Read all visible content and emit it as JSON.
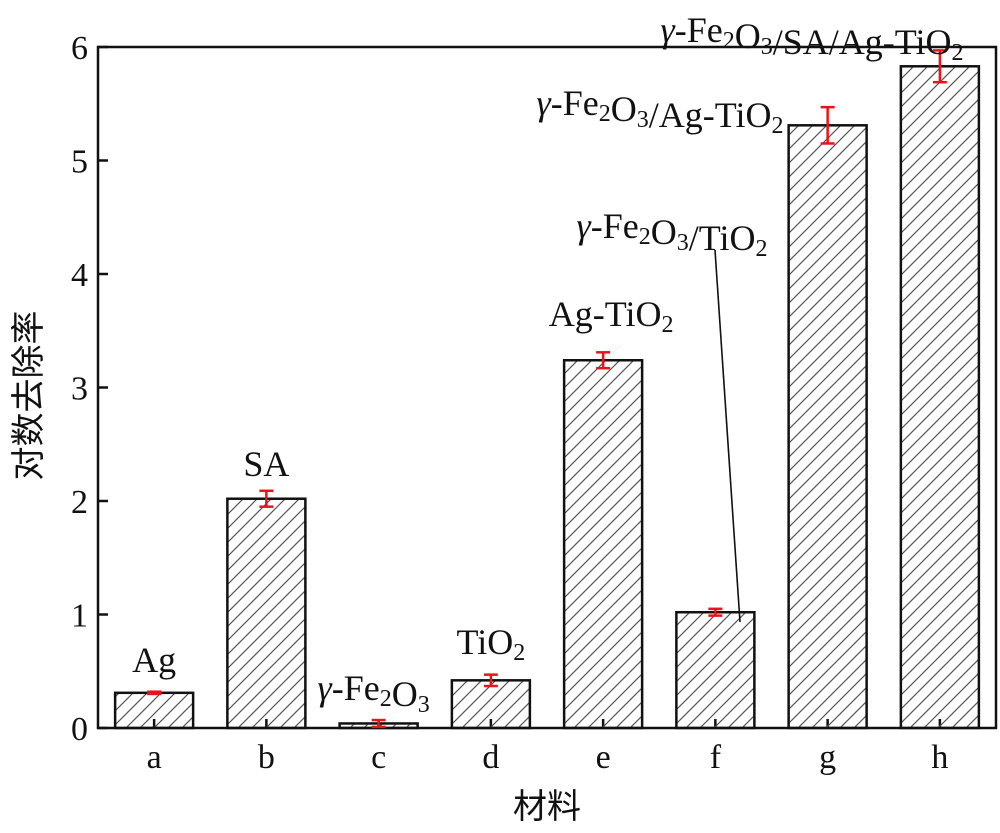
{
  "chart_data": {
    "type": "bar",
    "categories": [
      "a",
      "b",
      "c",
      "d",
      "e",
      "f",
      "g",
      "h"
    ],
    "values": [
      0.31,
      2.02,
      0.04,
      0.42,
      3.24,
      1.02,
      5.31,
      5.83
    ],
    "errors": [
      0.01,
      0.07,
      0.03,
      0.05,
      0.07,
      0.03,
      0.16,
      0.14
    ],
    "bar_labels": [
      "Ag",
      "SA",
      "γ-Fe2O3",
      "TiO2",
      "Ag-TiO2",
      "γ-Fe2O3/TiO2",
      "γ-Fe2O3/Ag-TiO2",
      "γ-Fe2O3/SA/Ag-TiO2"
    ],
    "xlabel": "材料",
    "ylabel": "对数去除率",
    "ylim": [
      0,
      6
    ],
    "yticks": [
      0,
      1,
      2,
      3,
      4,
      5,
      6
    ],
    "grid": false,
    "bar_style": "hatched",
    "colors": {
      "bar_edge": "#111111",
      "hatch": "#555555",
      "error_bar": "#e8141a",
      "text": "#111111"
    }
  }
}
